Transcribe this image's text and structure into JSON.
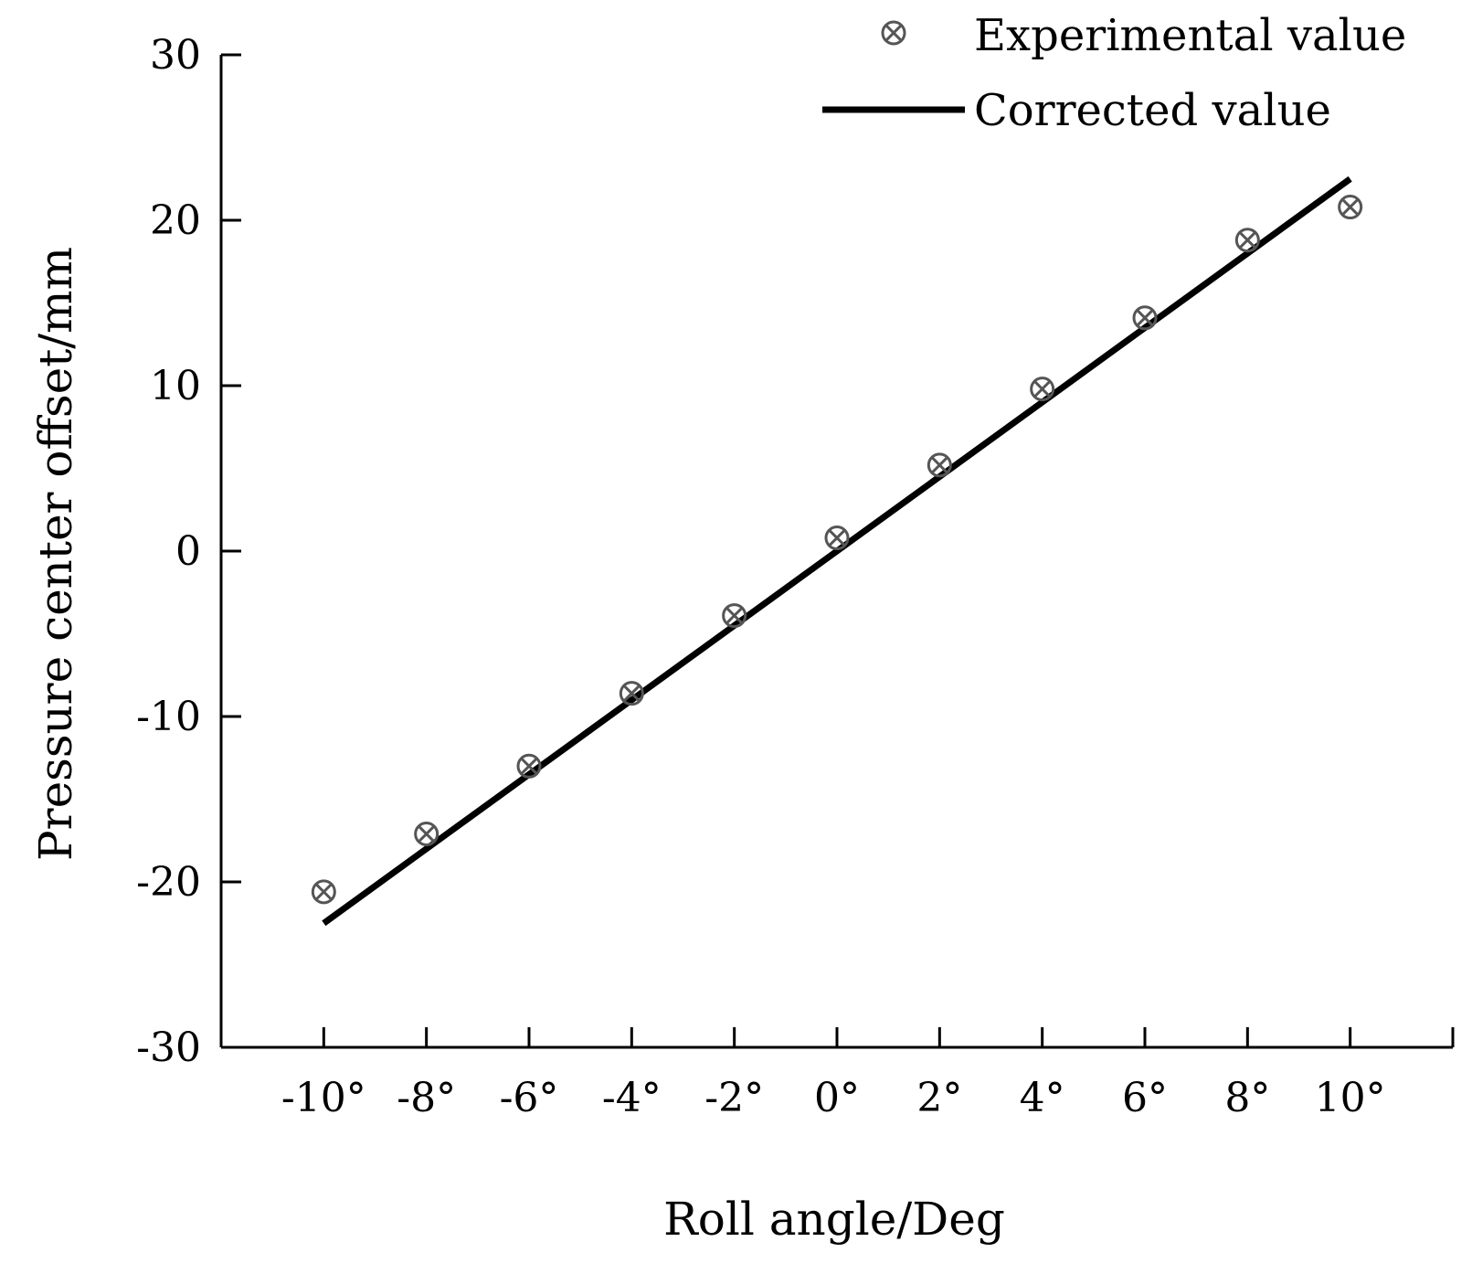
{
  "chart_data": {
    "type": "scatter",
    "title": "",
    "xlabel": "Roll angle/Deg",
    "ylabel": "Pressure center offset/mm",
    "x": [
      -10,
      -8,
      -6,
      -4,
      -2,
      0,
      2,
      4,
      6,
      8,
      10
    ],
    "x_tick_labels": [
      "-10°",
      "-8°",
      "-6°",
      "-4°",
      "-2°",
      "0°",
      "2°",
      "4°",
      "6°",
      "8°",
      "10°"
    ],
    "xlim": [
      -12,
      12
    ],
    "ylim": [
      -30,
      30
    ],
    "y_ticks": [
      30,
      20,
      10,
      0,
      -10,
      -20,
      -30
    ],
    "y_tick_labels": [
      "30",
      "20",
      "10",
      "0",
      "-10",
      "-20",
      "-30"
    ],
    "grid": false,
    "legend_position": "top-right",
    "series": [
      {
        "name": "Experimental value",
        "type": "scatter",
        "marker": "circle-x",
        "color": "#555555",
        "x": [
          -10,
          -8,
          -6,
          -4,
          -2,
          0,
          2,
          4,
          6,
          8,
          10
        ],
        "y": [
          -20.6,
          -17.1,
          -13.0,
          -8.6,
          -3.9,
          0.8,
          5.2,
          9.8,
          14.1,
          18.8,
          20.8
        ]
      },
      {
        "name": "Corrected value",
        "type": "line",
        "color": "#000000",
        "x": [
          -10,
          10
        ],
        "y": [
          -22.5,
          22.5
        ]
      }
    ]
  }
}
